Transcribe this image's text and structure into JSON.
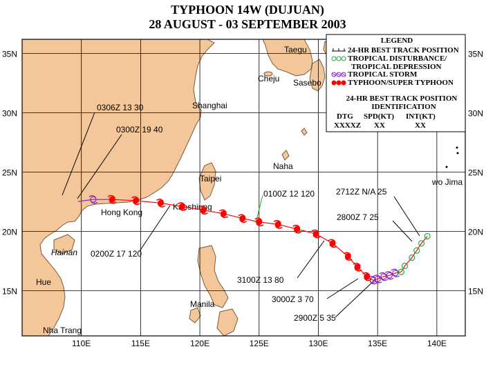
{
  "title": "TYPHOON 14W (DUJUAN)",
  "subtitle": "28 AUGUST - 03 SEPTEMBER 2003",
  "colors": {
    "land": "#f4c79a",
    "coast": "#7a5a3a",
    "sea": "#ffffff",
    "grid": "#000000",
    "typhoon": "#ff0000",
    "storm": "#8b1fc6",
    "depression": "#22aa44",
    "track": "#ff0000"
  },
  "latitude_labels": [
    "35N",
    "30N",
    "25N",
    "20N",
    "15N"
  ],
  "longitude_labels": [
    "110E",
    "115E",
    "120E",
    "125E",
    "130E",
    "135E",
    "140E"
  ],
  "places": [
    "Taegu",
    "Cheju",
    "Sasebo",
    "Shanghai",
    "Taipei",
    "Naha",
    "wo Jima",
    "Kaoshiung",
    "Hong Kong",
    "Hainan",
    "Manila",
    "Hue",
    "Nha Trang"
  ],
  "legend": {
    "title": "LEGEND",
    "items": [
      "24-HR BEST TRACK POSITION",
      "TROPICAL DISTURBANCE/",
      "TROPICAL DEPRESSION",
      "TROPICAL STORM",
      "TYPHOON/SUPER TYPHOON"
    ],
    "id_title_1": "24-HR BEST TRACK POSITION",
    "id_title_2": "IDENTIFICATION",
    "col_headers": [
      "DTG",
      "SPD(KT)",
      "INT(KT)"
    ],
    "col_values": [
      "XXXXZ",
      "XX",
      "XX"
    ]
  },
  "annotations": [
    "0306Z 13 30",
    "0300Z 19 40",
    "0100Z 12 120",
    "0200Z 17 120",
    "2712Z N/A 25",
    "2800Z 7 25",
    "3100Z 13 80",
    "3000Z 3 70",
    "2900Z 5 35"
  ],
  "track": {
    "depression": [
      [
        139.2,
        19.6
      ],
      [
        138.7,
        19.0
      ],
      [
        138.3,
        18.4
      ],
      [
        137.9,
        17.8
      ],
      [
        137.3,
        17.1
      ],
      [
        137.0,
        16.6
      ]
    ],
    "storm": [
      [
        136.5,
        16.5
      ],
      [
        136.0,
        16.3
      ],
      [
        135.5,
        16.2
      ],
      [
        135.0,
        16.0
      ],
      [
        134.6,
        15.9
      ],
      [
        111.0,
        22.7
      ]
    ],
    "typhoon": [
      [
        134.1,
        16.2
      ],
      [
        133.3,
        17.0
      ],
      [
        132.5,
        17.9
      ],
      [
        131.2,
        19.0
      ],
      [
        129.8,
        19.8
      ],
      [
        128.2,
        20.2
      ],
      [
        126.6,
        20.6
      ],
      [
        125.0,
        20.8
      ],
      [
        123.6,
        21.1
      ],
      [
        122.0,
        21.5
      ],
      [
        120.3,
        21.8
      ],
      [
        118.5,
        22.1
      ],
      [
        116.7,
        22.4
      ],
      [
        114.6,
        22.6
      ],
      [
        112.6,
        22.7
      ]
    ]
  }
}
